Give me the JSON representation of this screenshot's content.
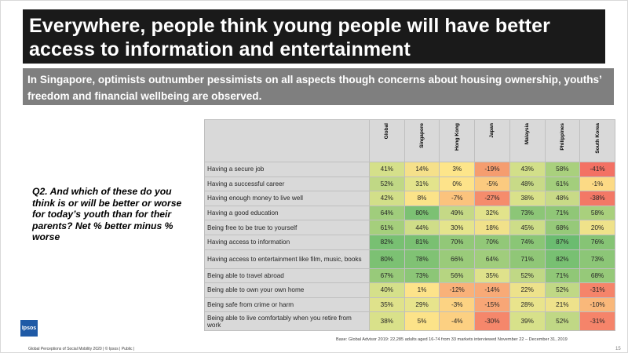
{
  "title": "Everywhere, people think young people will have better access to information and entertainment",
  "subtitle": "In Singapore, optimists outnumber pessimists on all aspects though concerns about housing ownership, youths’ freedom and financial wellbeing are observed.",
  "question": "Q2. And which of these do you think is or will be better or worse for today’s youth than for their parents? Net % better minus % worse",
  "logo_text": "Ipsos",
  "footer": "Global Perceptions of Social Mobility 2020 | © Ipsos | Public |",
  "page_number": "15",
  "base_note": "Base: Global Advisor 2019: 22,285 adults aged 16-74 from 33 markets interviewed November 22 – December 31, 2019",
  "table": {
    "columns": [
      "Global",
      "Singapore",
      "Hong Kong",
      "Japan",
      "Malaysia",
      "Philippines",
      "South Korea"
    ],
    "rows": [
      {
        "label": "Having a secure job",
        "values": [
          "41%",
          "14%",
          "3%",
          "-19%",
          "43%",
          "58%",
          "-41%"
        ],
        "colors": [
          "#d5e08a",
          "#f5e08a",
          "#fde58a",
          "#f59d6f",
          "#d2df89",
          "#a9d07d",
          "#f37164"
        ]
      },
      {
        "label": "Having a successful career",
        "values": [
          "52%",
          "31%",
          "0%",
          "-5%",
          "48%",
          "61%",
          "-1%"
        ],
        "colors": [
          "#c0d885",
          "#e3e48c",
          "#fde38a",
          "#fbca7f",
          "#c8da87",
          "#a3ce7c",
          "#fcda85"
        ]
      },
      {
        "label": "Having enough money to live well",
        "values": [
          "42%",
          "8%",
          "-7%",
          "-27%",
          "38%",
          "48%",
          "-38%"
        ],
        "colors": [
          "#d2df89",
          "#fbe389",
          "#fbc37d",
          "#f58c6c",
          "#d9e18a",
          "#c8da87",
          "#f37866"
        ]
      },
      {
        "label": "Having a good education",
        "values": [
          "64%",
          "80%",
          "49%",
          "32%",
          "73%",
          "71%",
          "58%"
        ],
        "colors": [
          "#a0cd7c",
          "#7cc173",
          "#c5d986",
          "#e2e38b",
          "#8cc677",
          "#90c777",
          "#a9d07d"
        ]
      },
      {
        "label": "Being free to be true to yourself",
        "values": [
          "61%",
          "44%",
          "30%",
          "18%",
          "45%",
          "68%",
          "20%"
        ],
        "colors": [
          "#a5cf7c",
          "#cfdd88",
          "#e5e48c",
          "#f1e18a",
          "#cddd88",
          "#96c979",
          "#efe28a"
        ]
      },
      {
        "label": "Having access to information",
        "values": [
          "82%",
          "81%",
          "70%",
          "70%",
          "74%",
          "87%",
          "76%"
        ],
        "colors": [
          "#78c072",
          "#7ac072",
          "#92c878",
          "#92c878",
          "#8ac676",
          "#6bbc70",
          "#86c475"
        ]
      },
      {
        "label": "Having access to entertainment  like film, music, books",
        "values": [
          "80%",
          "78%",
          "66%",
          "64%",
          "71%",
          "82%",
          "73%"
        ],
        "colors": [
          "#7cc173",
          "#80c274",
          "#9acb7a",
          "#a0cd7c",
          "#90c777",
          "#78c072",
          "#8cc677"
        ]
      },
      {
        "label": "Being able to travel abroad",
        "values": [
          "67%",
          "73%",
          "56%",
          "35%",
          "52%",
          "71%",
          "68%"
        ],
        "colors": [
          "#98ca7a",
          "#8cc677",
          "#b6d581",
          "#dfe28b",
          "#c0d885",
          "#90c777",
          "#96c979"
        ]
      },
      {
        "label": "Being able to own your own home",
        "values": [
          "40%",
          "1%",
          "-12%",
          "-14%",
          "22%",
          "52%",
          "-31%"
        ],
        "colors": [
          "#d5e08a",
          "#fde38a",
          "#f9b179",
          "#f8aa77",
          "#ede28b",
          "#c0d885",
          "#f5846a"
        ]
      },
      {
        "label": "Being safe from crime or harm",
        "values": [
          "35%",
          "29%",
          "-3%",
          "-15%",
          "28%",
          "21%",
          "-10%"
        ],
        "colors": [
          "#dfe28b",
          "#e7e48c",
          "#fcd383",
          "#f8a676",
          "#e9e48c",
          "#eee28b",
          "#f9b87a"
        ]
      },
      {
        "label": "Being able to live comfortably when you retire from work",
        "values": [
          "38%",
          "5%",
          "-4%",
          "-30%",
          "39%",
          "52%",
          "-31%"
        ],
        "colors": [
          "#d9e18a",
          "#fce389",
          "#fcd082",
          "#f5876b",
          "#d7e18a",
          "#c0d885",
          "#f5846a"
        ]
      }
    ]
  }
}
